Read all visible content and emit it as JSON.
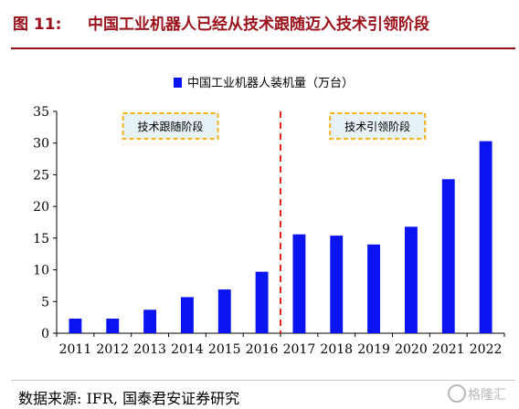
{
  "figure": {
    "label": "图 11:",
    "title": "中国工业机器人已经从技术跟随迈入技术引领阶段"
  },
  "source": "数据来源: IFR, 国泰君安证券研究",
  "watermark": "格隆汇",
  "chart_data": {
    "type": "bar",
    "categories": [
      "2011",
      "2012",
      "2013",
      "2014",
      "2015",
      "2016",
      "2017",
      "2018",
      "2019",
      "2020",
      "2021",
      "2022"
    ],
    "series": [
      {
        "name": "中国工业机器人装机量（万台）",
        "values": [
          2.3,
          2.3,
          3.7,
          5.7,
          6.9,
          9.7,
          15.6,
          15.4,
          14.0,
          16.8,
          24.3,
          30.3
        ]
      }
    ],
    "ylim": [
      0,
      35
    ],
    "yticks": [
      0,
      5,
      10,
      15,
      20,
      25,
      30,
      35
    ],
    "legend_position": "top-center",
    "grid": false,
    "bar_color": "#0a14f0",
    "annotations": [
      {
        "text": "技术跟随阶段",
        "position": "left"
      },
      {
        "text": "技术引领阶段",
        "position": "right"
      }
    ],
    "divider_between": [
      "2016",
      "2017"
    ],
    "divider_color": "#e8221c",
    "annotation_border_color": "#f2b21a",
    "annotation_fill_color": "#e6f2f8"
  }
}
